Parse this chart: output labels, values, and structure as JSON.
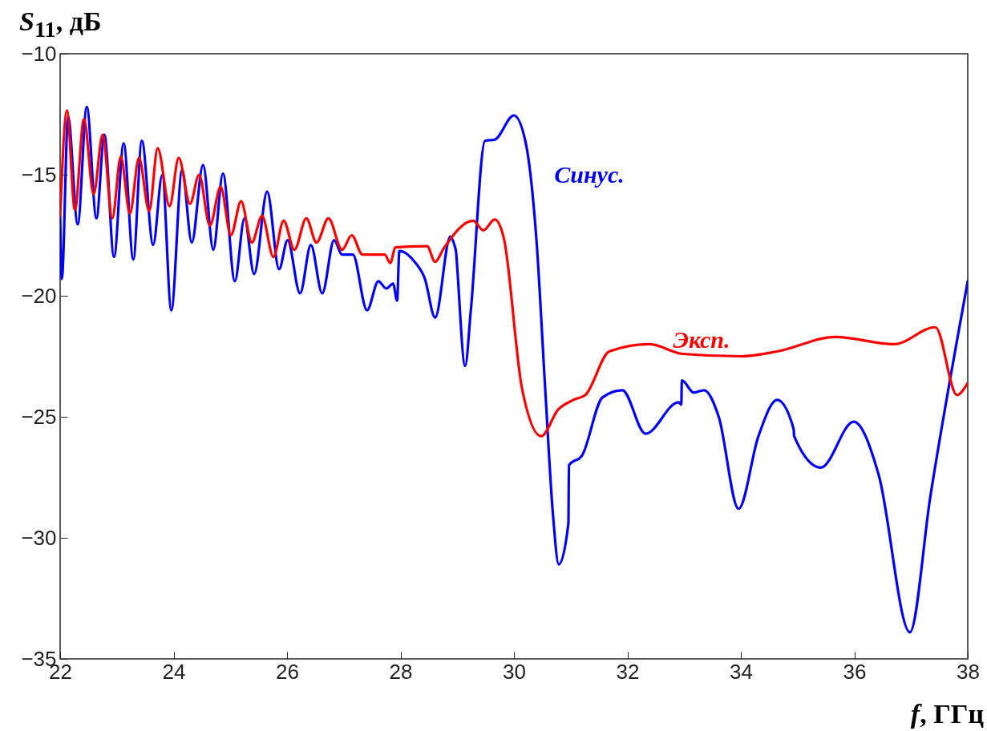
{
  "chart_data": {
    "type": "line",
    "xlabel": "f, ГГц",
    "ylabel": "S$_{11}$, дБ",
    "xlim": [
      22,
      38
    ],
    "ylim": [
      -35,
      -10
    ],
    "xticks": [
      22,
      24,
      26,
      28,
      30,
      32,
      34,
      36,
      38
    ],
    "yticks": [
      -35,
      -30,
      -25,
      -20,
      -15,
      -10
    ],
    "grid": false,
    "line_style": "solid",
    "series": [
      {
        "name": "Синус.",
        "color": "#0000ff",
        "x": [
          22.0,
          22.03,
          22.14,
          22.31,
          22.47,
          22.64,
          22.78,
          22.95,
          23.12,
          23.29,
          23.44,
          23.64,
          23.8,
          23.96,
          24.15,
          24.32,
          24.52,
          24.7,
          24.87,
          25.08,
          25.25,
          25.42,
          25.65,
          25.86,
          26.01,
          26.23,
          26.42,
          26.62,
          26.83,
          26.97,
          27.16,
          27.41,
          27.61,
          27.75,
          27.87,
          27.94,
          27.98,
          28.25,
          28.43,
          28.61,
          28.88,
          28.95,
          28.98,
          28.99,
          29.14,
          29.24,
          29.49,
          29.66,
          30.0,
          30.2,
          30.4,
          30.55,
          30.69,
          30.79,
          30.96,
          30.97,
          31.2,
          31.56,
          31.91,
          32.32,
          32.9,
          32.95,
          32.96,
          33.17,
          33.35,
          33.61,
          33.96,
          34.31,
          34.64,
          34.93,
          34.94,
          35.41,
          35.99,
          36.43,
          36.98,
          37.34,
          38.0
        ],
        "values": [
          -16.7,
          -19.3,
          -12.6,
          -17.05,
          -12.2,
          -16.8,
          -13.35,
          -18.4,
          -13.7,
          -18.5,
          -13.6,
          -17.9,
          -15.0,
          -20.6,
          -14.8,
          -17.8,
          -14.6,
          -18.1,
          -14.95,
          -19.4,
          -16.8,
          -19.1,
          -15.7,
          -18.9,
          -17.7,
          -19.9,
          -17.9,
          -19.9,
          -17.7,
          -18.3,
          -18.3,
          -20.6,
          -19.4,
          -19.7,
          -19.5,
          -20.2,
          -18.15,
          -18.6,
          -19.3,
          -20.9,
          -17.55,
          -17.9,
          -18.2,
          -18.5,
          -22.9,
          -20.6,
          -13.6,
          -13.55,
          -12.55,
          -13.6,
          -17.8,
          -23.8,
          -29.1,
          -31.1,
          -29.4,
          -27.0,
          -26.6,
          -24.2,
          -23.9,
          -25.7,
          -24.4,
          -24.5,
          -23.5,
          -24.0,
          -23.9,
          -25.0,
          -28.8,
          -25.8,
          -24.3,
          -25.5,
          -25.8,
          -27.1,
          -25.2,
          -27.4,
          -33.9,
          -28.3,
          -19.4
        ]
      },
      {
        "name": "Эксп.",
        "color": "#ff0000",
        "x": [
          22.0,
          22.12,
          22.26,
          22.42,
          22.59,
          22.75,
          22.92,
          23.07,
          23.23,
          23.39,
          23.57,
          23.72,
          23.93,
          24.09,
          24.29,
          24.45,
          24.64,
          24.83,
          25.01,
          25.19,
          25.38,
          25.56,
          25.76,
          25.94,
          26.13,
          26.34,
          26.52,
          26.73,
          26.97,
          27.14,
          27.33,
          27.72,
          27.82,
          27.91,
          28.47,
          28.61,
          28.76,
          29.28,
          29.46,
          29.66,
          29.82,
          30.14,
          30.48,
          30.78,
          31.05,
          31.26,
          31.68,
          32.39,
          32.97,
          34.0,
          34.64,
          35.67,
          36.7,
          37.43,
          37.81,
          38.0
        ],
        "values": [
          -16.7,
          -12.35,
          -16.45,
          -12.7,
          -15.8,
          -13.35,
          -16.8,
          -14.25,
          -16.6,
          -14.3,
          -16.5,
          -13.9,
          -16.3,
          -14.3,
          -16.2,
          -15.0,
          -17.1,
          -15.5,
          -17.5,
          -16.1,
          -17.8,
          -16.7,
          -18.4,
          -16.9,
          -18.1,
          -16.8,
          -17.8,
          -16.8,
          -18.1,
          -17.5,
          -18.3,
          -18.3,
          -18.65,
          -18.0,
          -17.95,
          -18.6,
          -18.05,
          -16.9,
          -17.3,
          -16.85,
          -17.6,
          -23.8,
          -25.8,
          -24.7,
          -24.3,
          -24.1,
          -22.3,
          -22.0,
          -22.4,
          -22.5,
          -22.3,
          -21.7,
          -22.0,
          -21.3,
          -24.1,
          -23.6
        ]
      }
    ]
  }
}
